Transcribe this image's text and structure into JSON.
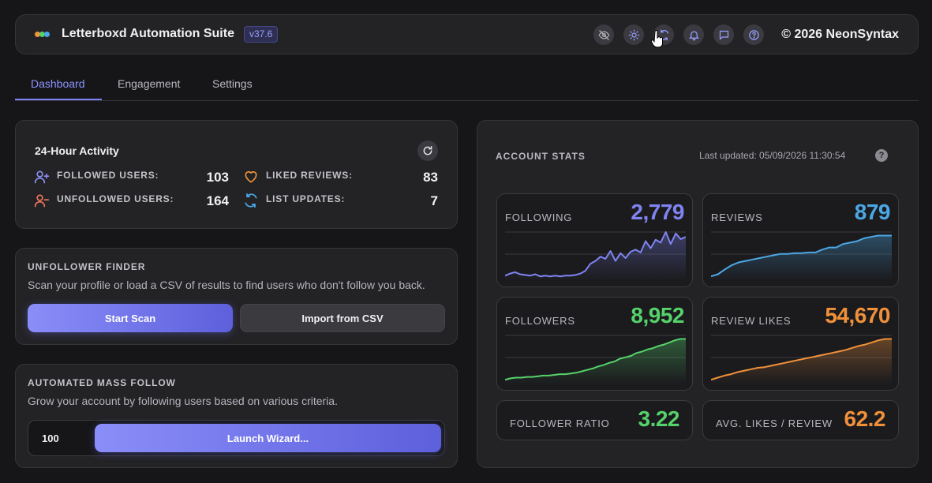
{
  "header": {
    "app_title": "Letterboxd Automation Suite",
    "version": "v37.6",
    "copyright": "© 2026 NeonSyntax",
    "icons": [
      "eye-off-icon",
      "sun-icon",
      "sync-icon",
      "bell-icon",
      "chat-icon",
      "help-circle-icon"
    ]
  },
  "tabs": [
    {
      "label": "Dashboard",
      "active": true
    },
    {
      "label": "Engagement",
      "active": false
    },
    {
      "label": "Settings",
      "active": false
    }
  ],
  "activity": {
    "title": "24-Hour Activity",
    "items": [
      {
        "label": "FOLLOWED USERS:",
        "value": "103",
        "icon": "user-plus-icon",
        "color": "#8d8ff5"
      },
      {
        "label": "UNFOLLOWED USERS:",
        "value": "164",
        "icon": "user-minus-icon",
        "color": "#f0765c"
      },
      {
        "label": "LIKED REVIEWS:",
        "value": "83",
        "icon": "heart-icon",
        "color": "#f0953a"
      },
      {
        "label": "LIST UPDATES:",
        "value": "7",
        "icon": "sync-icon",
        "color": "#4aa8e8"
      }
    ]
  },
  "unfollower": {
    "title": "UNFOLLOWER FINDER",
    "description": "Scan your profile or load a CSV of results to find users who don't follow you back.",
    "start_scan_label": "Start Scan",
    "import_label": "Import from CSV"
  },
  "mass_follow": {
    "title": "AUTOMATED MASS FOLLOW",
    "description": "Grow your account by following users based on various criteria.",
    "count_value": "100",
    "launch_label": "Launch Wizard..."
  },
  "account_stats": {
    "title": "ACCOUNT STATS",
    "last_updated": "Last updated: 05/09/2026 11:30:54",
    "help": "?",
    "metrics": [
      {
        "key": "following",
        "label": "FOLLOWING",
        "value": "2,779",
        "color": "#7f84f2",
        "trend": [
          3,
          6,
          8,
          5,
          4,
          3,
          5,
          2,
          3,
          2,
          3,
          2,
          3,
          3,
          4,
          6,
          10,
          20,
          24,
          30,
          27,
          38,
          24,
          35,
          28,
          37,
          40,
          36,
          52,
          42,
          54,
          50,
          65,
          48,
          63,
          55,
          58
        ]
      },
      {
        "key": "reviews",
        "label": "REVIEWS",
        "value": "879",
        "color": "#4ba7e5",
        "trend": [
          2,
          5,
          12,
          18,
          22,
          24,
          26,
          28,
          30,
          32,
          34,
          34,
          35,
          35,
          36,
          36,
          40,
          43,
          43,
          48,
          50,
          52,
          56,
          58,
          60,
          60,
          60
        ]
      },
      {
        "key": "followers",
        "label": "FOLLOWERS",
        "value": "8,952",
        "color": "#55d26a",
        "trend": [
          2,
          4,
          5,
          5,
          6,
          6,
          7,
          8,
          8,
          9,
          10,
          10,
          11,
          12,
          14,
          16,
          18,
          21,
          23,
          26,
          28,
          32,
          34,
          36,
          40,
          42,
          45,
          47,
          50,
          52,
          55,
          58,
          60,
          60
        ]
      },
      {
        "key": "review_likes",
        "label": "REVIEW LIKES",
        "value": "54,670",
        "color": "#f0913a",
        "trend": [
          2,
          5,
          8,
          10,
          13,
          15,
          17,
          19,
          20,
          22,
          24,
          26,
          28,
          30,
          32,
          34,
          36,
          38,
          40,
          42,
          44,
          47,
          50,
          52,
          55,
          58,
          60,
          60
        ]
      }
    ],
    "ratios": [
      {
        "label": "FOLLOWER RATIO",
        "value": "3.22",
        "color": "#55d26a"
      },
      {
        "label": "AVG. LIKES / REVIEW",
        "value": "62.2",
        "color": "#f0913a"
      }
    ]
  }
}
